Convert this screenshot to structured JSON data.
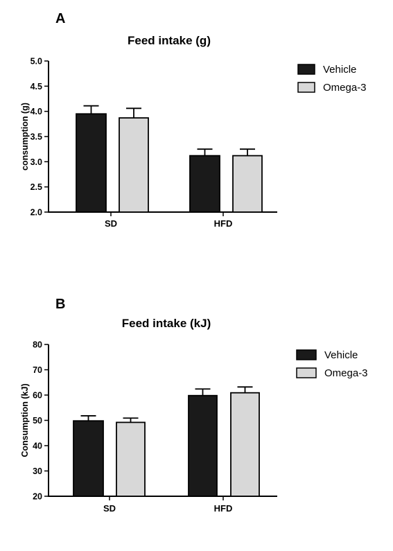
{
  "chart_data": [
    {
      "type": "bar",
      "panel_label": "A",
      "title": "Feed intake (g)",
      "ylabel": "consumption (g)",
      "xlabel": "",
      "categories": [
        "SD",
        "HFD"
      ],
      "ylim": [
        2.0,
        5.0
      ],
      "yticks": [
        "2.0",
        "2.5",
        "3.0",
        "3.5",
        "4.0",
        "4.5",
        "5.0"
      ],
      "series": [
        {
          "name": "Vehicle",
          "values": [
            3.95,
            3.12
          ],
          "errors": [
            0.16,
            0.13
          ],
          "color": "#1a1a1a"
        },
        {
          "name": "Omega-3",
          "values": [
            3.87,
            3.12
          ],
          "errors": [
            0.19,
            0.13
          ],
          "color": "#d8d8d8"
        }
      ],
      "legend": "top-right",
      "grid": false
    },
    {
      "type": "bar",
      "panel_label": "B",
      "title": "Feed intake (kJ)",
      "ylabel": "Consumption (kJ)",
      "xlabel": "",
      "categories": [
        "SD",
        "HFD"
      ],
      "ylim": [
        20,
        80
      ],
      "yticks": [
        "20",
        "30",
        "40",
        "50",
        "60",
        "70",
        "80"
      ],
      "series": [
        {
          "name": "Vehicle",
          "values": [
            49.8,
            59.8
          ],
          "errors": [
            2.0,
            2.6
          ],
          "color": "#1a1a1a"
        },
        {
          "name": "Omega-3",
          "values": [
            49.2,
            60.9
          ],
          "errors": [
            1.7,
            2.3
          ],
          "color": "#d8d8d8"
        }
      ],
      "legend": "top-right",
      "grid": false
    }
  ]
}
